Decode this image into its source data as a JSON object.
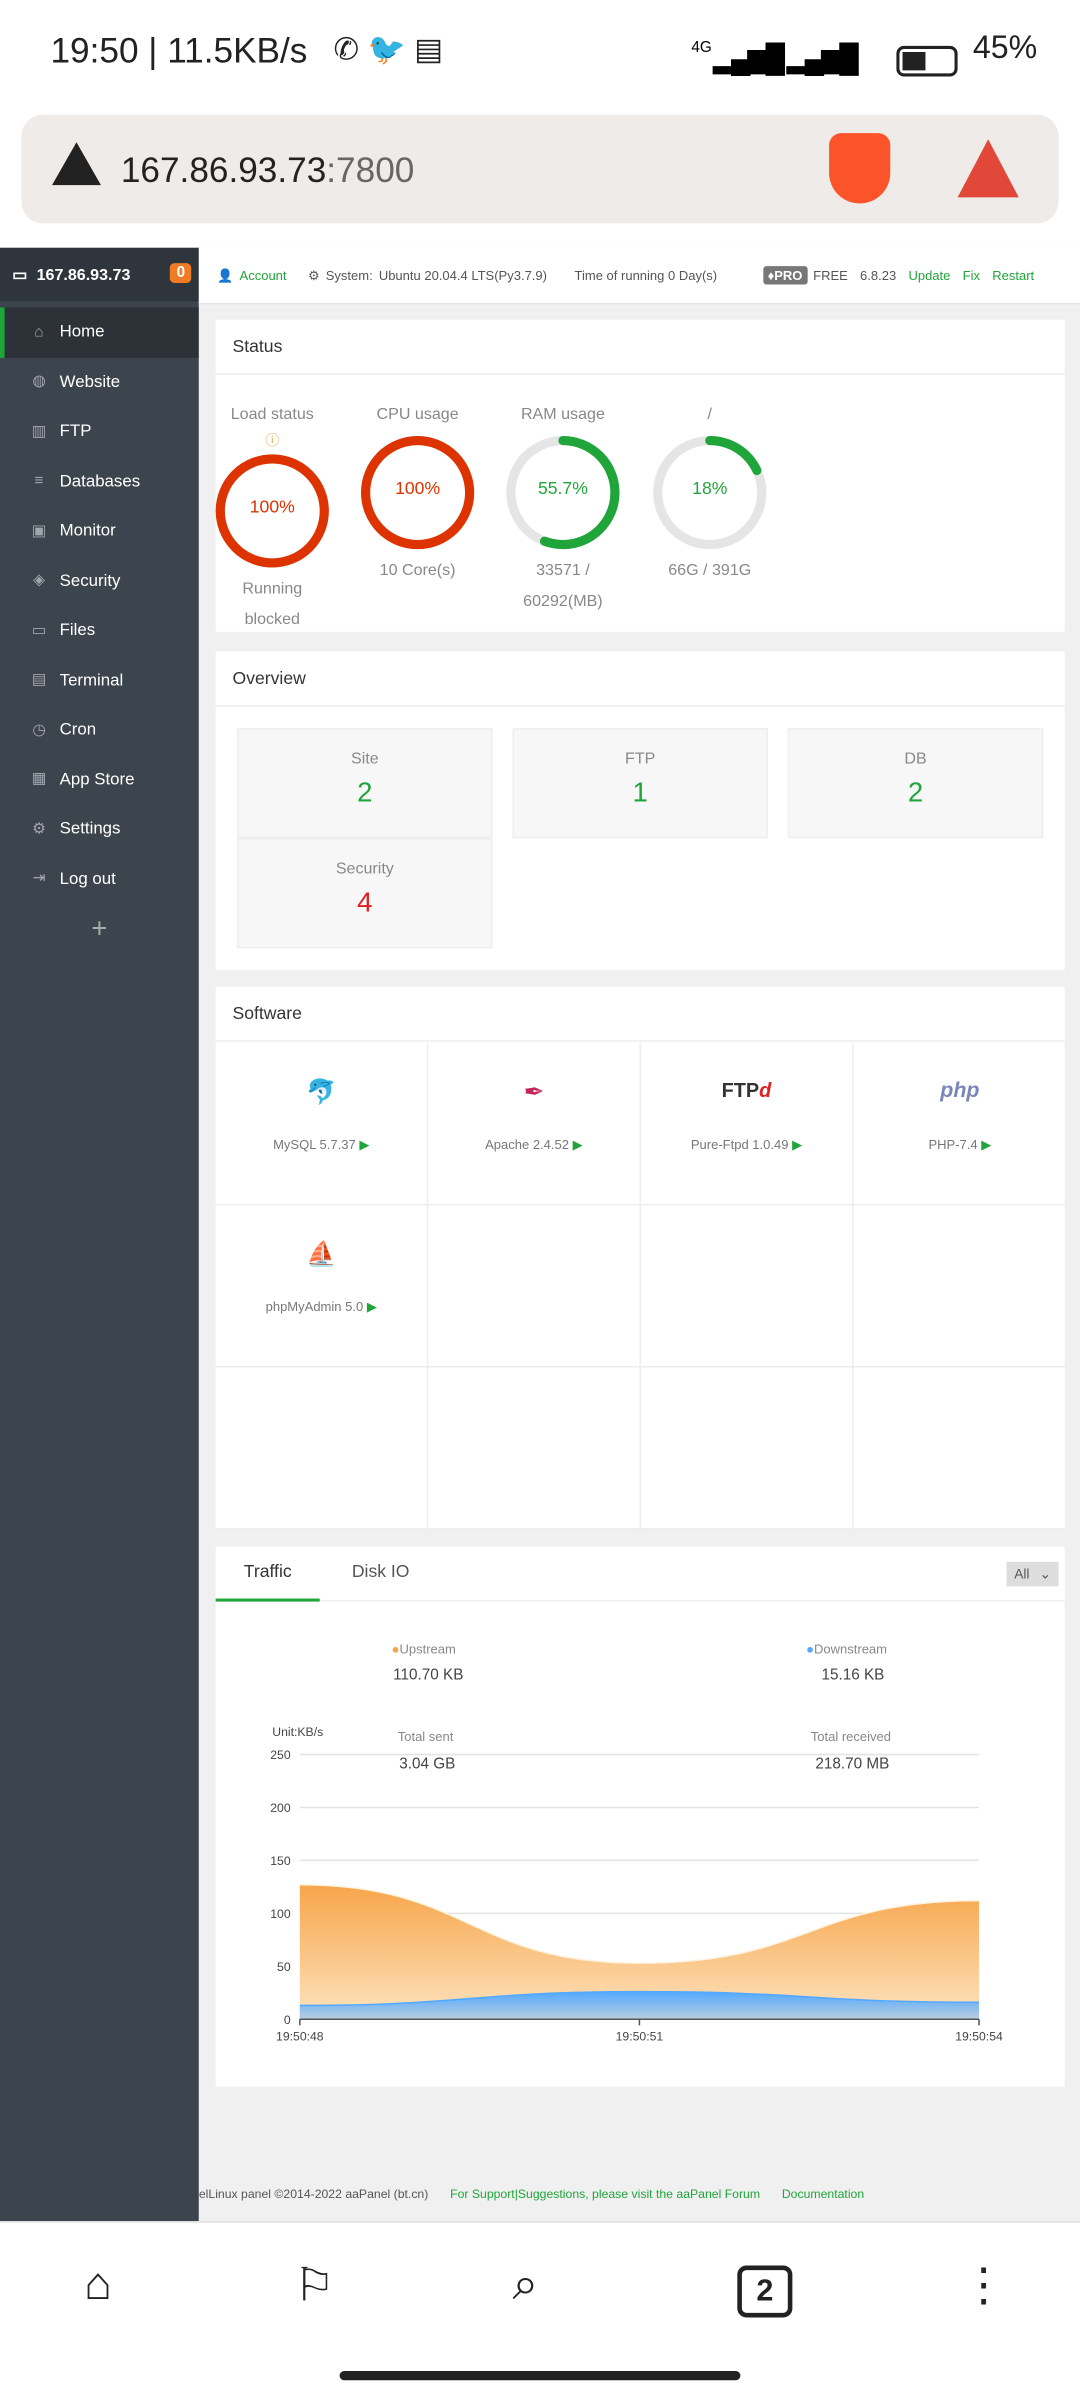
{
  "status_bar": {
    "time": "19:50 | 11.5KB/s",
    "network": "4G",
    "battery": "45%"
  },
  "browser": {
    "url_host": "167.86.93.73",
    "url_port": ":7800"
  },
  "sidebar": {
    "server": "167.86.93.73",
    "badge": "0",
    "items": [
      {
        "label": "Home",
        "icon": "home-icon"
      },
      {
        "label": "Website",
        "icon": "globe-icon"
      },
      {
        "label": "FTP",
        "icon": "ftp-icon"
      },
      {
        "label": "Databases",
        "icon": "database-icon"
      },
      {
        "label": "Monitor",
        "icon": "monitor-icon"
      },
      {
        "label": "Security",
        "icon": "shield-icon"
      },
      {
        "label": "Files",
        "icon": "folder-icon"
      },
      {
        "label": "Terminal",
        "icon": "terminal-icon"
      },
      {
        "label": "Cron",
        "icon": "clock-icon"
      },
      {
        "label": "App Store",
        "icon": "grid-icon"
      },
      {
        "label": "Settings",
        "icon": "gear-icon"
      },
      {
        "label": "Log out",
        "icon": "logout-icon"
      }
    ],
    "add": "+"
  },
  "topbar": {
    "account": "Account",
    "system_label": "System:",
    "system": "Ubuntu 20.04.4 LTS(Py3.7.9)",
    "uptime": "Time of running 0 Day(s)",
    "pro": "PRO",
    "free": "FREE",
    "version": "6.8.23",
    "update": "Update",
    "fix": "Fix",
    "restart": "Restart"
  },
  "status": {
    "title": "Status",
    "gauges": [
      {
        "label": "Load status",
        "value": "100%",
        "percent": 100,
        "sub1": "Running",
        "sub2": "blocked",
        "color": "#dd3300"
      },
      {
        "label": "CPU usage",
        "value": "100%",
        "percent": 100,
        "sub1": "10 Core(s)",
        "sub2": "",
        "color": "#dd3300"
      },
      {
        "label": "RAM usage",
        "value": "55.7%",
        "percent": 55.7,
        "sub1": "33571 /",
        "sub2": "60292(MB)",
        "color": "#20a53a"
      },
      {
        "label": "/",
        "value": "18%",
        "percent": 18,
        "sub1": "66G / 391G",
        "sub2": "",
        "color": "#20a53a"
      }
    ]
  },
  "overview": {
    "title": "Overview",
    "items": [
      {
        "label": "Site",
        "value": "2"
      },
      {
        "label": "FTP",
        "value": "1"
      },
      {
        "label": "DB",
        "value": "2"
      },
      {
        "label": "Security",
        "value": "4"
      }
    ]
  },
  "software": {
    "title": "Software",
    "items": [
      {
        "name": "MySQL 5.7.37",
        "icon": "mysql-dolphin-icon"
      },
      {
        "name": "Apache 2.4.52",
        "icon": "apache-feather-icon"
      },
      {
        "name": "Pure-Ftpd 1.0.49",
        "icon": "ftp-logo-icon",
        "logo": "FTPd"
      },
      {
        "name": "PHP-7.4",
        "icon": "php-logo-icon",
        "logo": "php"
      },
      {
        "name": "phpMyAdmin 5.0",
        "icon": "phpmyadmin-sailboat-icon"
      }
    ]
  },
  "traffic": {
    "tabs": [
      "Traffic",
      "Disk IO"
    ],
    "select": "All",
    "upstream_label": "Upstream",
    "upstream": "110.70 KB",
    "downstream_label": "Downstream",
    "downstream": "15.16 KB",
    "sent_label": "Total sent",
    "sent": "3.04 GB",
    "received_label": "Total received",
    "received": "218.70 MB"
  },
  "chart_data": {
    "type": "area",
    "ylabel": "Unit:KB/s",
    "x": [
      "19:50:48",
      "19:50:51",
      "19:50:54"
    ],
    "ylim": [
      0,
      250
    ],
    "yticks": [
      0,
      50,
      100,
      150,
      200,
      250
    ],
    "grid": true,
    "series": [
      {
        "name": "Upstream",
        "color": "#f7a54a",
        "values": [
          127,
          53,
          112
        ]
      },
      {
        "name": "Downstream",
        "color": "#52a9ff",
        "values": [
          13,
          26,
          16
        ]
      }
    ]
  },
  "footer": {
    "copyright": "elLinux panel ©2014-2022 aaPanel (bt.cn)",
    "support": "For Support|Suggestions, please visit the aaPanel Forum",
    "docs": "Documentation"
  },
  "bottom_nav": {
    "tabs_count": "2"
  }
}
